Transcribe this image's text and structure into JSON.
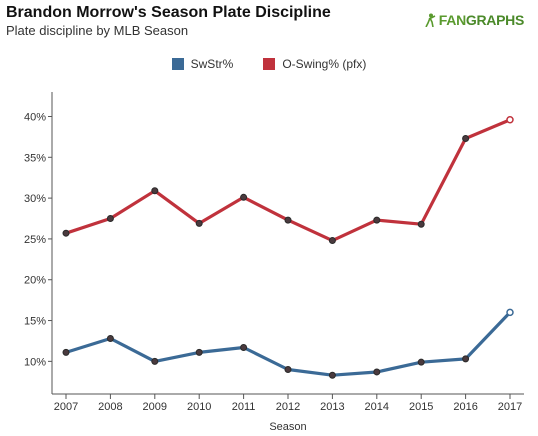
{
  "header": {
    "title": "Brandon Morrow's Season Plate Discipline",
    "subtitle": "Plate discipline by MLB Season",
    "brand": "FANGRAPHS",
    "brand_prefix": "FAN",
    "brand_suffix": "GRAPHS"
  },
  "chart_data": {
    "type": "line",
    "title": "Brandon Morrow's Season Plate Discipline",
    "subtitle": "Plate discipline by MLB Season",
    "xlabel": "Season",
    "ylabel": "",
    "x": [
      2007,
      2008,
      2009,
      2010,
      2011,
      2012,
      2013,
      2014,
      2015,
      2016,
      2017
    ],
    "x_tick_labels": [
      "2007",
      "2008",
      "2009",
      "2010",
      "2011",
      "2012",
      "2013",
      "2014",
      "2015",
      "2016",
      "2017"
    ],
    "y_ticks": [
      10,
      15,
      20,
      25,
      30,
      35,
      40
    ],
    "y_tick_labels": [
      "10%",
      "15%",
      "20%",
      "25%",
      "30%",
      "35%",
      "40%"
    ],
    "ylim": [
      6,
      43
    ],
    "grid": false,
    "legend_position": "top-center",
    "series": [
      {
        "name": "SwStr%",
        "color": "#3b6a96",
        "values": [
          11.1,
          12.8,
          10.0,
          11.1,
          11.7,
          9.0,
          8.3,
          8.7,
          9.9,
          10.3,
          16.0
        ]
      },
      {
        "name": "O-Swing% (pfx)",
        "color": "#c0323c",
        "values": [
          25.7,
          27.5,
          30.9,
          26.9,
          30.1,
          27.3,
          24.8,
          27.3,
          26.8,
          37.3,
          39.6
        ]
      }
    ]
  }
}
